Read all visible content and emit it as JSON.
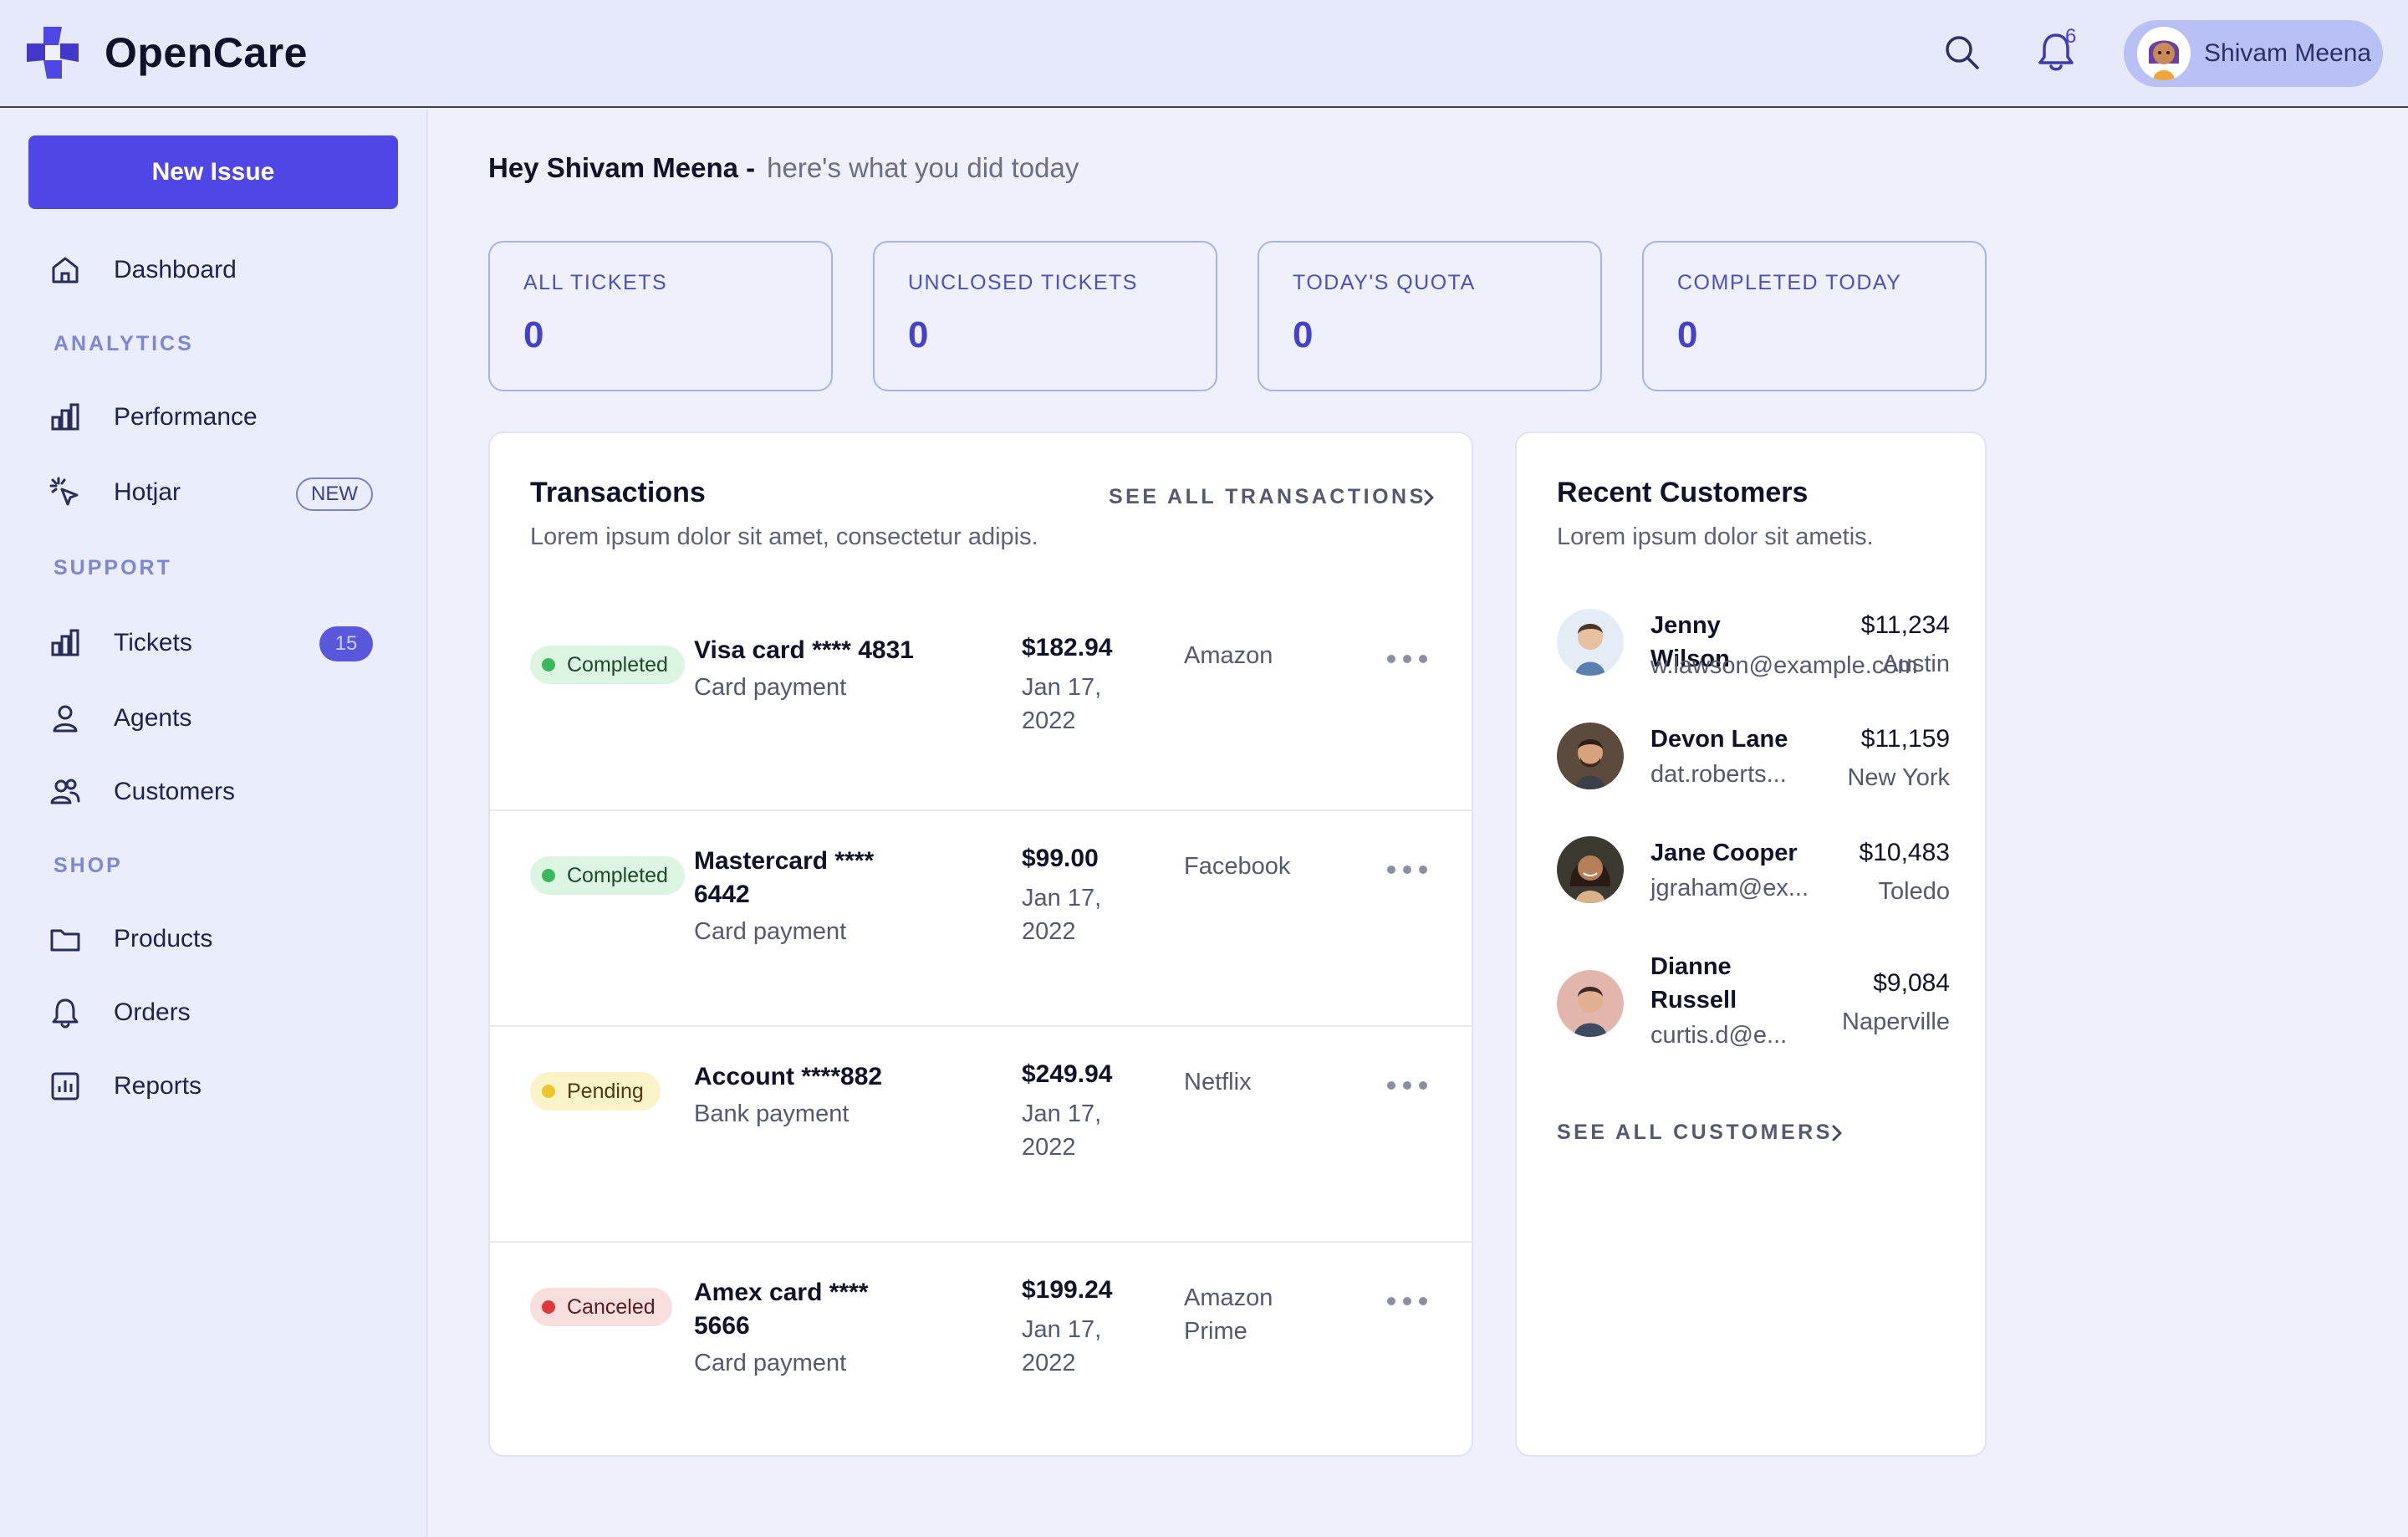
{
  "app": {
    "brand": "OpenCare",
    "notification_count": "6",
    "user_name": "Shivam Meena",
    "accent_color": "#4f46e5"
  },
  "sidebar": {
    "new_issue_label": "New Issue",
    "dashboard": "Dashboard",
    "sections": {
      "analytics": "ANALYTICS",
      "support": "SUPPORT",
      "shop": "SHOP"
    },
    "items": {
      "performance": "Performance",
      "hotjar": "Hotjar",
      "hotjar_badge": "NEW",
      "tickets": "Tickets",
      "tickets_count": "15",
      "agents": "Agents",
      "customers": "Customers",
      "products": "Products",
      "orders": "Orders",
      "reports": "Reports"
    }
  },
  "greeting": {
    "hello": "Hey Shivam Meena -",
    "subtitle": "here's what you did today"
  },
  "stats": [
    {
      "label": "ALL TICKETS",
      "value": "0"
    },
    {
      "label": "UNCLOSED TICKETS",
      "value": "0"
    },
    {
      "label": "TODAY'S QUOTA",
      "value": "0"
    },
    {
      "label": "COMPLETED TODAY",
      "value": "0"
    }
  ],
  "transactions": {
    "title": "Transactions",
    "subtitle": "Lorem ipsum dolor sit amet, consectetur adipis.",
    "see_all": "SEE ALL TRANSACTIONS",
    "rows": [
      {
        "status": "Completed",
        "card": "Visa card **** 4831",
        "method": "Card payment",
        "amount": "$182.94",
        "date": "Jan 17, 2022",
        "merchant": "Amazon"
      },
      {
        "status": "Completed",
        "card": "Mastercard **** 6442",
        "method": "Card payment",
        "amount": "$99.00",
        "date": "Jan 17, 2022",
        "merchant": "Facebook"
      },
      {
        "status": "Pending",
        "card": "Account ****882",
        "method": "Bank payment",
        "amount": "$249.94",
        "date": "Jan 17, 2022",
        "merchant": "Netflix"
      },
      {
        "status": "Canceled",
        "card": "Amex card **** 5666",
        "method": "Card payment",
        "amount": "$199.24",
        "date": "Jan 17, 2022",
        "merchant": "Amazon Prime"
      }
    ]
  },
  "customers": {
    "title": "Recent Customers",
    "subtitle": "Lorem ipsum dolor sit ametis.",
    "see_all": "SEE ALL CUSTOMERS",
    "rows": [
      {
        "name": "Jenny Wilson",
        "email": "w.lawson@example.com",
        "amount": "$11,234",
        "city": "Austin"
      },
      {
        "name": "Devon Lane",
        "email": "dat.roberts...",
        "amount": "$11,159",
        "city": "New York"
      },
      {
        "name": "Jane Cooper",
        "email": "jgraham@ex...",
        "amount": "$10,483",
        "city": "Toledo"
      },
      {
        "name": "Dianne Russell",
        "email": "curtis.d@e...",
        "amount": "$9,084",
        "city": "Naperville"
      }
    ]
  }
}
